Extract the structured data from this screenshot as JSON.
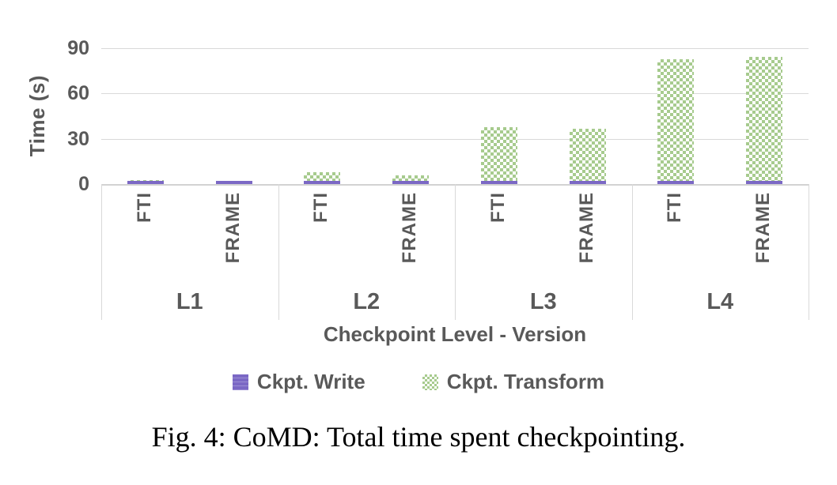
{
  "figure": {
    "caption": "Fig. 4: CoMD: Total time spent checkpointing."
  },
  "chart_data": {
    "type": "bar",
    "stacked": true,
    "xlabel": "Checkpoint Level - Version",
    "ylabel": "Time (s)",
    "ylim": [
      0,
      90
    ],
    "yticks": [
      0,
      30,
      60,
      90
    ],
    "grid": "horizontal",
    "legend_position": "bottom",
    "groups": [
      "L1",
      "L2",
      "L3",
      "L4"
    ],
    "bar_labels": [
      "FTI",
      "FRAME"
    ],
    "categories": [
      "L1 FTI",
      "L1 FRAME",
      "L2 FTI",
      "L2 FRAME",
      "L3 FTI",
      "L3 FRAME",
      "L4 FTI",
      "L4 FRAME"
    ],
    "series": [
      {
        "name": "Ckpt. Write",
        "color": "#7b68c5",
        "pattern": "solid",
        "values": [
          2.3,
          2.1,
          2.0,
          2.0,
          2.0,
          2.0,
          2.0,
          2.0
        ]
      },
      {
        "name": "Ckpt. Transform",
        "color": "#a7cb8e",
        "pattern": "checker",
        "values": [
          0.5,
          0,
          6.0,
          3.6,
          35.5,
          34.5,
          80.5,
          82.0
        ]
      }
    ]
  },
  "colors": {
    "accent_purple": "#7b68c5",
    "accent_green": "#a7cb8e",
    "axis_text": "#595959",
    "gridline": "#d9d9d9",
    "caption_text": "#000000"
  }
}
